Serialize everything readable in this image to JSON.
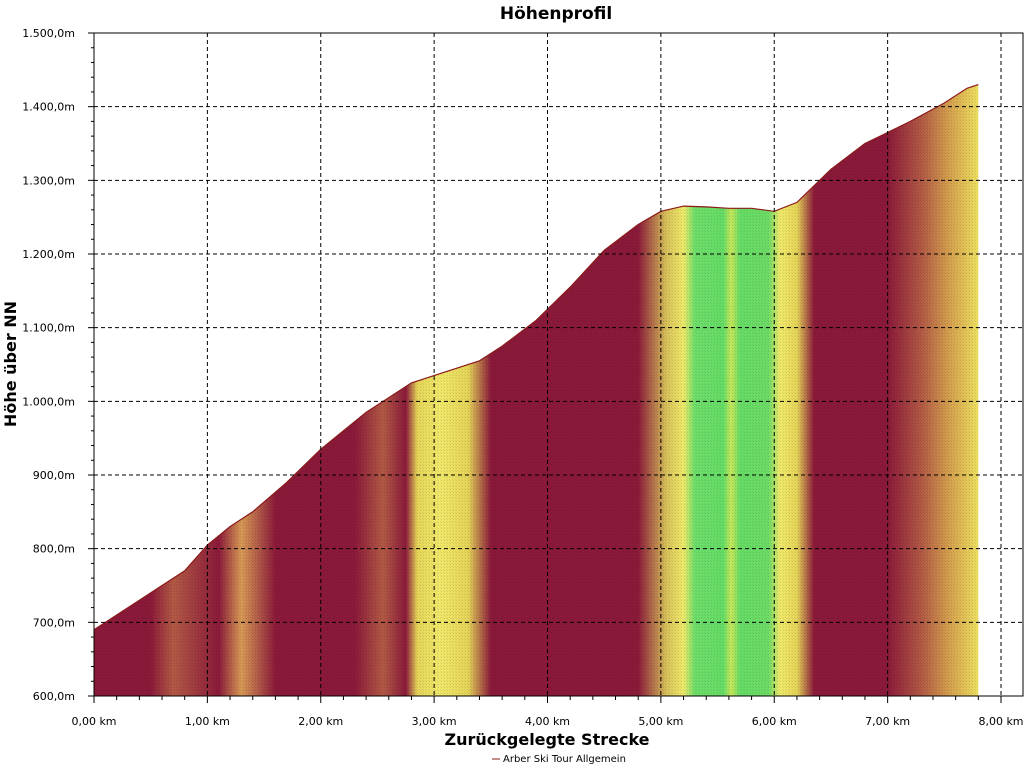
{
  "chart_data": {
    "type": "area",
    "title": "Höhenprofil",
    "xlabel": "Zurückgelegte Strecke",
    "ylabel": "Höhe über NN",
    "xlim": [
      0,
      8
    ],
    "ylim": [
      600,
      1500
    ],
    "x_ticks": [
      0,
      1,
      2,
      3,
      4,
      5,
      6,
      7,
      8
    ],
    "x_tick_labels": [
      "0,00 km",
      "1,00 km",
      "2,00 km",
      "3,00 km",
      "4,00 km",
      "5,00 km",
      "6,00 km",
      "7,00 km",
      "8,00 km"
    ],
    "y_ticks": [
      600,
      700,
      800,
      900,
      1000,
      1100,
      1200,
      1300,
      1400,
      1500
    ],
    "y_tick_labels": [
      "600,0m",
      "700,0m",
      "800,0m",
      "900,0m",
      "1.000,0m",
      "1.100,0m",
      "1.200,0m",
      "1.300,0m",
      "1.400,0m",
      "1.500,0m"
    ],
    "grid": true,
    "legend_position": "bottom",
    "series": [
      {
        "name": "Arber Ski Tour Allgemein",
        "color": "#8b1a1a",
        "x": [
          0.0,
          0.3,
          0.6,
          0.8,
          1.0,
          1.2,
          1.4,
          1.7,
          2.0,
          2.4,
          2.8,
          3.2,
          3.4,
          3.6,
          3.9,
          4.2,
          4.5,
          4.8,
          5.0,
          5.2,
          5.4,
          5.6,
          5.8,
          6.0,
          6.2,
          6.5,
          6.8,
          7.0,
          7.2,
          7.5,
          7.7,
          7.8
        ],
        "values": [
          690,
          720,
          750,
          770,
          805,
          830,
          850,
          890,
          935,
          985,
          1025,
          1045,
          1055,
          1075,
          1110,
          1155,
          1205,
          1240,
          1258,
          1265,
          1264,
          1262,
          1262,
          1258,
          1270,
          1315,
          1350,
          1365,
          1380,
          1405,
          1425,
          1430
        ]
      }
    ],
    "gradient_stops": [
      {
        "x": 0.0,
        "color": "#8b1a3a"
      },
      {
        "x": 0.5,
        "color": "#8b1a3a"
      },
      {
        "x": 0.7,
        "color": "#b35a45"
      },
      {
        "x": 1.1,
        "color": "#8b1a3a"
      },
      {
        "x": 1.3,
        "color": "#d89a55"
      },
      {
        "x": 1.6,
        "color": "#8b1a3a"
      },
      {
        "x": 2.3,
        "color": "#8b1a3a"
      },
      {
        "x": 2.55,
        "color": "#b35a45"
      },
      {
        "x": 2.75,
        "color": "#8b1a3a"
      },
      {
        "x": 2.85,
        "color": "#e6d558"
      },
      {
        "x": 3.05,
        "color": "#f0e86a"
      },
      {
        "x": 3.3,
        "color": "#e6d558"
      },
      {
        "x": 3.5,
        "color": "#8b1a3a"
      },
      {
        "x": 4.8,
        "color": "#8b1a3a"
      },
      {
        "x": 5.05,
        "color": "#d8c25a"
      },
      {
        "x": 5.2,
        "color": "#f0ea6a"
      },
      {
        "x": 5.3,
        "color": "#6dde6a"
      },
      {
        "x": 5.55,
        "color": "#66dd66"
      },
      {
        "x": 5.62,
        "color": "#c8e85a"
      },
      {
        "x": 5.7,
        "color": "#66dd66"
      },
      {
        "x": 5.95,
        "color": "#6ddc66"
      },
      {
        "x": 6.05,
        "color": "#f0ea6a"
      },
      {
        "x": 6.2,
        "color": "#e6d558"
      },
      {
        "x": 6.35,
        "color": "#8b1a3a"
      },
      {
        "x": 7.0,
        "color": "#8b1a3a"
      },
      {
        "x": 7.3,
        "color": "#b35a45"
      },
      {
        "x": 7.55,
        "color": "#d6a24e"
      },
      {
        "x": 7.8,
        "color": "#eee060"
      }
    ]
  }
}
